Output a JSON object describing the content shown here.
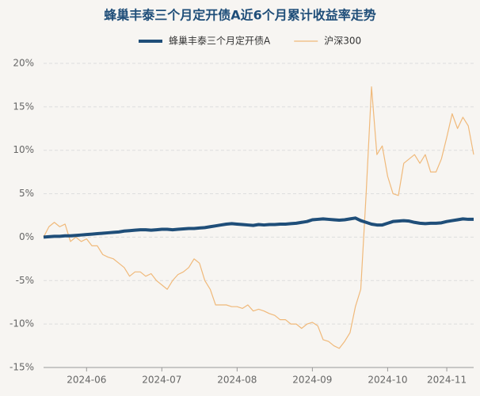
{
  "chart_data": {
    "type": "line",
    "title": "蜂巢丰泰三个月定开债A近6个月累计收益率走势",
    "x": [
      null,
      null,
      null,
      null,
      null,
      null,
      null,
      null,
      "2024-06",
      null,
      null,
      null,
      null,
      null,
      null,
      null,
      null,
      null,
      null,
      null,
      null,
      null,
      "2024-07",
      null,
      null,
      null,
      null,
      null,
      null,
      null,
      null,
      null,
      null,
      null,
      null,
      null,
      "2024-08",
      null,
      null,
      null,
      null,
      null,
      null,
      null,
      null,
      null,
      null,
      null,
      null,
      null,
      "2024-09",
      null,
      null,
      null,
      null,
      null,
      null,
      null,
      null,
      null,
      null,
      null,
      null,
      null,
      "2024-10",
      null,
      null,
      null,
      null,
      null,
      null,
      null,
      null,
      null,
      null,
      "2024-11",
      null,
      null,
      null,
      null,
      null
    ],
    "series": [
      {
        "name": "蜂巢丰泰三个月定开债A",
        "color": "#1f4e79",
        "width": 4,
        "values": [
          0,
          0.05,
          0.1,
          0.1,
          0.15,
          0.15,
          0.2,
          0.25,
          0.3,
          0.35,
          0.4,
          0.45,
          0.5,
          0.55,
          0.6,
          0.7,
          0.75,
          0.8,
          0.85,
          0.85,
          0.8,
          0.85,
          0.9,
          0.9,
          0.85,
          0.9,
          0.95,
          1.0,
          1.0,
          1.05,
          1.1,
          1.2,
          1.3,
          1.4,
          1.5,
          1.55,
          1.5,
          1.45,
          1.4,
          1.35,
          1.45,
          1.4,
          1.45,
          1.45,
          1.5,
          1.5,
          1.55,
          1.6,
          1.7,
          1.8,
          2.0,
          2.05,
          2.1,
          2.05,
          2.0,
          1.95,
          2.0,
          2.1,
          2.2,
          1.9,
          1.7,
          1.5,
          1.4,
          1.4,
          1.6,
          1.8,
          1.85,
          1.9,
          1.85,
          1.7,
          1.6,
          1.55,
          1.6,
          1.6,
          1.65,
          1.8,
          1.9,
          2.0,
          2.1,
          2.05,
          2.05
        ]
      },
      {
        "name": "沪深300",
        "color": "#f0b97a",
        "width": 1.2,
        "values": [
          0,
          1.2,
          1.7,
          1.2,
          1.5,
          -0.5,
          0,
          -0.5,
          -0.2,
          -1,
          -1,
          -2,
          -2.3,
          -2.5,
          -3,
          -3.5,
          -4.5,
          -4,
          -4,
          -4.5,
          -4.2,
          -5,
          -5.5,
          -6,
          -5,
          -4.3,
          -4,
          -3.5,
          -2.5,
          -3,
          -5,
          -6,
          -7.8,
          -7.8,
          -7.8,
          -8,
          -8,
          -8.2,
          -7.8,
          -8.5,
          -8.3,
          -8.5,
          -8.8,
          -9,
          -9.5,
          -9.5,
          -10,
          -10,
          -10.5,
          -10,
          -9.8,
          -10.2,
          -11.8,
          -12,
          -12.5,
          -12.8,
          -12,
          -11,
          -8,
          -6,
          5,
          17.3,
          9.5,
          10.5,
          7,
          5,
          4.8,
          8.5,
          9,
          9.5,
          8.5,
          9.5,
          7.5,
          7.5,
          9,
          11.5,
          14.2,
          12.5,
          13.8,
          12.8,
          9.5
        ]
      }
    ],
    "ylim": [
      -15,
      20
    ],
    "yticks": [
      {
        "value": -15,
        "label": "-15%"
      },
      {
        "value": -10,
        "label": "-10%"
      },
      {
        "value": -5,
        "label": "-5%"
      },
      {
        "value": 0,
        "label": "0%"
      },
      {
        "value": 5,
        "label": "5%"
      },
      {
        "value": 10,
        "label": "10%"
      },
      {
        "value": 15,
        "label": "15%"
      },
      {
        "value": 20,
        "label": "20%"
      }
    ],
    "grid": true
  }
}
